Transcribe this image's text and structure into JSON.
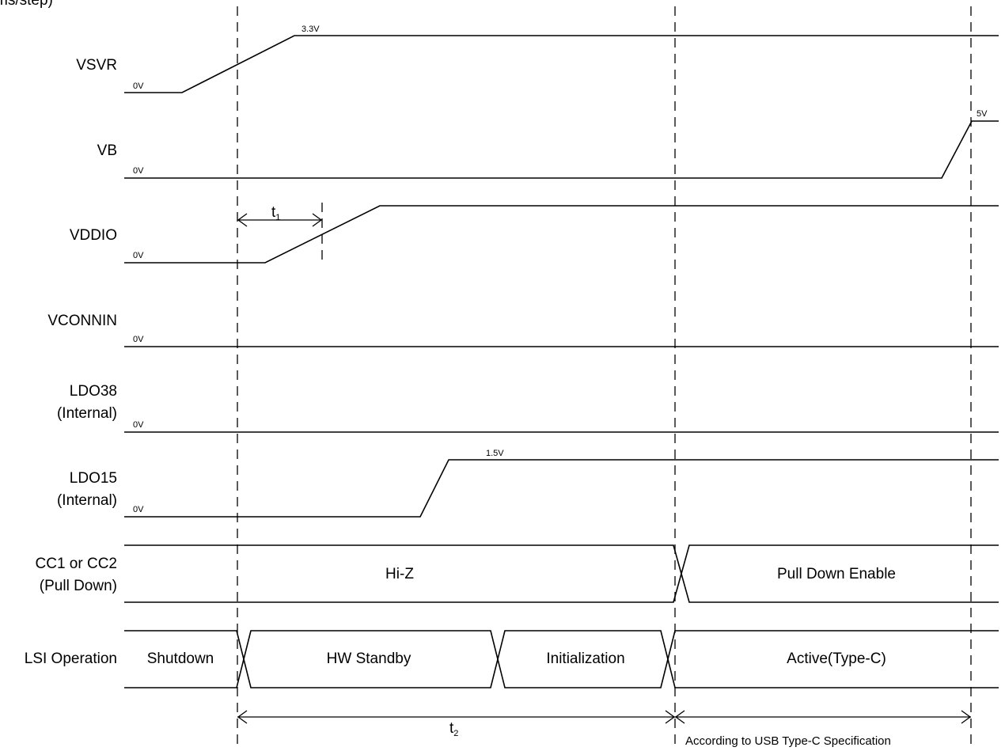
{
  "header_fragment": "ms/step)",
  "signals": {
    "vsvr": "VSVR",
    "vb": "VB",
    "vddio": "VDDIO",
    "vconnin": "VCONNIN",
    "ldo38": "LDO38",
    "ldo38_sub": "(Internal)",
    "ldo15": "LDO15",
    "ldo15_sub": "(Internal)",
    "cc": "CC1 or CC2",
    "cc_sub": "(Pull Down)",
    "lsi": "LSI Operation"
  },
  "levels": {
    "zero": "0V",
    "vsvr_high": "3.3V",
    "vb_high": "5V",
    "ldo15_high": "1.5V"
  },
  "cc_states": {
    "hiz": "Hi-Z",
    "pulldown": "Pull Down Enable"
  },
  "lsi_states": {
    "shutdown": "Shutdown",
    "standby": "HW Standby",
    "init": "Initialization",
    "active": "Active(Type-C)"
  },
  "timing": {
    "t1_base": "t",
    "t1_sub": "1",
    "t2_base": "t",
    "t2_sub": "2",
    "spec_note": "According to USB Type-C Specification"
  }
}
